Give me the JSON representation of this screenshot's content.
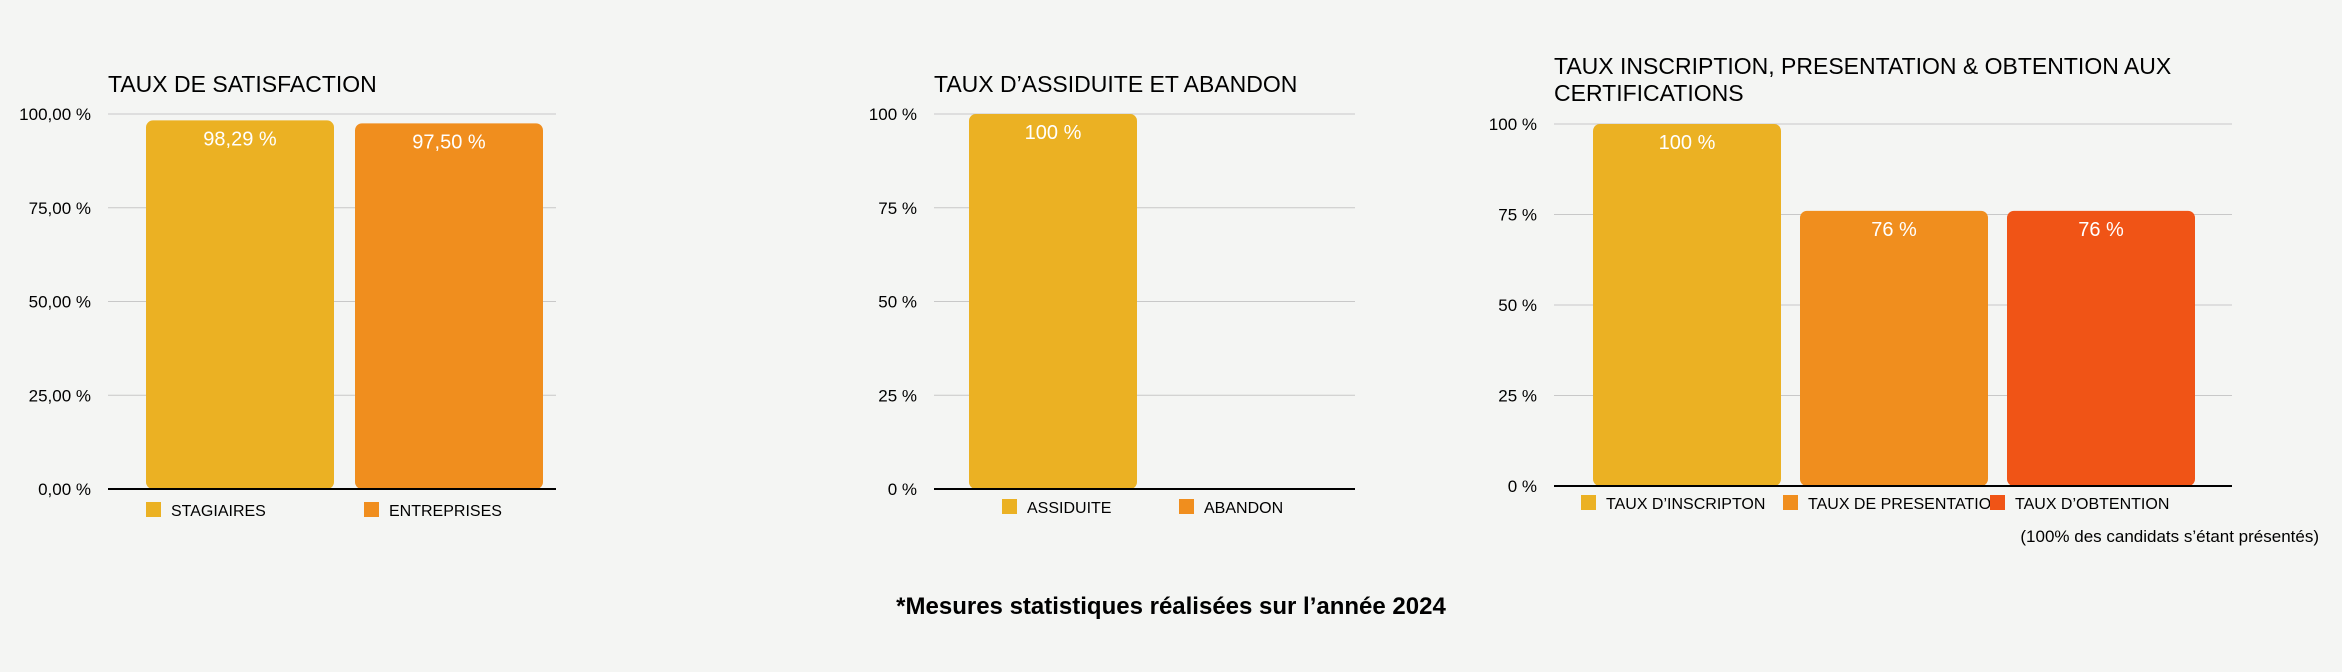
{
  "chart_data": [
    {
      "type": "bar",
      "title": "TAUX DE SATISFACTION",
      "categories": [
        "STAGIAIRES",
        "ENTREPRISES"
      ],
      "values": [
        98.29,
        97.5
      ],
      "data_labels": [
        "98,29 %",
        "97,50 %"
      ],
      "ylim": [
        0,
        100
      ],
      "yticks": [
        "0,00 %",
        "25,00 %",
        "50,00 %",
        "75,00 %",
        "100,00 %"
      ],
      "colors": [
        "#ebb123",
        "#f08e1e"
      ],
      "grid": true,
      "legend": "bottom",
      "footnote": ""
    },
    {
      "type": "bar",
      "title": "TAUX D’ASSIDUITE ET ABANDON",
      "categories": [
        "ASSIDUITE",
        "ABANDON"
      ],
      "values": [
        100,
        0
      ],
      "data_labels": [
        "100 %",
        ""
      ],
      "ylim": [
        0,
        100
      ],
      "yticks": [
        "0 %",
        "25 %",
        "50 %",
        "75 %",
        "100 %"
      ],
      "colors": [
        "#ebb123",
        "#f08e1e"
      ],
      "grid": true,
      "legend": "bottom",
      "footnote": ""
    },
    {
      "type": "bar",
      "title": "TAUX INSCRIPTION, PRESENTATION & OBTENTION AUX CERTIFICATIONS",
      "categories": [
        "TAUX D’INSCRIPTON",
        "TAUX DE PRESENTATION",
        "TAUX D’OBTENTION"
      ],
      "values": [
        100,
        76,
        76
      ],
      "data_labels": [
        "100 %",
        "76 %",
        "76 %"
      ],
      "ylim": [
        0,
        100
      ],
      "yticks": [
        "0 %",
        "25 %",
        "50 %",
        "75 %",
        "100 %"
      ],
      "colors": [
        "#ebb123",
        "#f08e1e",
        "#f05416"
      ],
      "grid": true,
      "legend": "bottom",
      "footnote": "(100% des candidats s’étant présentés)"
    }
  ],
  "footer": {
    "note": "*Mesures statistiques réalisées sur l’année 2024"
  }
}
